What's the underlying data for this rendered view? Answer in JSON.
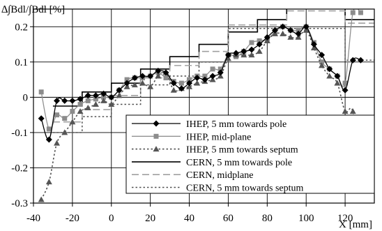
{
  "chart_data": {
    "type": "line",
    "title": "",
    "ylabel": "∆∫Bdl/∫Bdl [%]",
    "xlabel": "X [mm]",
    "xlim": [
      -40,
      135
    ],
    "ylim": [
      -0.3,
      0.25
    ],
    "x_ticks": [
      -40,
      -20,
      0,
      20,
      40,
      60,
      80,
      100,
      120
    ],
    "x_tick_labels": [
      "-40",
      "-20",
      "0",
      "20",
      "40",
      "60",
      "80",
      "100",
      "120"
    ],
    "y_ticks": [
      0.2,
      0.1,
      0,
      -0.1,
      -0.2,
      -0.3
    ],
    "y_tick_labels": [
      "0.2",
      "0.1",
      "0",
      "-0.1",
      "-0.2",
      "-0.3"
    ],
    "grid": true,
    "legend_position": "bottom-right",
    "series": [
      {
        "name": "IHEP, 5 mm towards pole",
        "color": "#000000",
        "line_style": "solid",
        "line_width": 1.3,
        "marker": "diamond",
        "smooth": true,
        "x": [
          -36,
          -32,
          -28,
          -24,
          -20,
          -16,
          -12,
          -8,
          -4,
          0,
          4,
          8,
          12,
          16,
          20,
          24,
          28,
          32,
          36,
          40,
          44,
          48,
          52,
          56,
          60,
          64,
          68,
          72,
          76,
          80,
          84,
          88,
          92,
          96,
          100,
          104,
          108,
          112,
          116,
          120,
          124,
          128
        ],
        "y": [
          -0.06,
          -0.12,
          -0.01,
          -0.01,
          -0.01,
          -0.005,
          0.005,
          0.005,
          0.01,
          0.0,
          0.02,
          0.04,
          0.055,
          0.06,
          0.06,
          0.075,
          0.07,
          0.04,
          0.025,
          0.04,
          0.055,
          0.05,
          0.06,
          0.07,
          0.12,
          0.125,
          0.13,
          0.135,
          0.15,
          0.17,
          0.19,
          0.2,
          0.19,
          0.18,
          0.2,
          0.15,
          0.12,
          0.08,
          0.06,
          0.02,
          0.105,
          0.105
        ]
      },
      {
        "name": "IHEP, mid-plane",
        "color": "#909090",
        "line_style": "solid",
        "line_width": 1.3,
        "marker": "square",
        "smooth": true,
        "x": [
          -36,
          -32,
          -28,
          -24,
          -20,
          -16,
          -12,
          -8,
          -4,
          0,
          4,
          8,
          12,
          16,
          20,
          24,
          28,
          32,
          36,
          40,
          44,
          48,
          52,
          56,
          60,
          64,
          68,
          72,
          76,
          80,
          84,
          88,
          92,
          96,
          100,
          104,
          108,
          112,
          116,
          120,
          124,
          128
        ],
        "y": [
          0.015,
          -0.09,
          -0.05,
          -0.06,
          -0.04,
          -0.02,
          -0.01,
          -0.005,
          0.0,
          0.0,
          0.02,
          0.05,
          0.055,
          0.055,
          0.06,
          0.07,
          0.055,
          0.045,
          0.04,
          0.05,
          0.06,
          0.06,
          0.08,
          0.08,
          0.12,
          0.115,
          0.13,
          0.155,
          0.16,
          0.165,
          0.185,
          0.2,
          0.19,
          0.19,
          0.2,
          0.155,
          0.1,
          0.08,
          0.06,
          0.04,
          0.24,
          0.24
        ]
      },
      {
        "name": "IHEP, 5 mm towards septum",
        "color": "#505050",
        "line_style": "dotted",
        "line_width": 1.6,
        "marker": "triangle",
        "smooth": true,
        "x": [
          -36,
          -32,
          -28,
          -24,
          -20,
          -16,
          -12,
          -8,
          -4,
          0,
          4,
          8,
          12,
          16,
          20,
          24,
          28,
          32,
          36,
          40,
          44,
          48,
          52,
          56,
          60,
          64,
          68,
          72,
          76,
          80,
          84,
          88,
          92,
          96,
          100,
          104,
          108,
          112,
          116,
          120,
          124,
          128
        ],
        "y": [
          -0.29,
          -0.24,
          -0.13,
          -0.1,
          -0.07,
          -0.04,
          -0.03,
          -0.02,
          -0.01,
          -0.02,
          0.005,
          0.03,
          0.035,
          0.04,
          0.03,
          0.06,
          0.07,
          0.02,
          0.025,
          0.03,
          0.04,
          0.045,
          0.05,
          0.06,
          0.11,
          0.12,
          0.12,
          0.12,
          0.13,
          0.16,
          0.18,
          0.18,
          0.17,
          0.17,
          0.19,
          0.14,
          0.09,
          0.06,
          0.04,
          -0.04,
          -0.04,
          -0.2
        ]
      },
      {
        "name": "CERN, 5 mm towards pole",
        "color": "#000000",
        "line_style": "solid",
        "line_width": 1.6,
        "marker": "none",
        "step": true,
        "x": [
          -30,
          -15,
          -15,
          0,
          0,
          15,
          15,
          30,
          30,
          45,
          45,
          60,
          60,
          75,
          75,
          90,
          90,
          120,
          120,
          135
        ],
        "y": [
          -0.025,
          -0.025,
          0.015,
          0.015,
          0.04,
          0.04,
          0.08,
          0.08,
          0.115,
          0.115,
          0.15,
          0.15,
          0.185,
          0.185,
          0.22,
          0.22,
          0.255,
          0.255,
          0.22,
          0.22
        ]
      },
      {
        "name": "CERN, midplane",
        "color": "#a0a0a0",
        "line_style": "dashed",
        "line_width": 1.6,
        "marker": "none",
        "step": true,
        "x": [
          -30,
          -15,
          -15,
          0,
          0,
          15,
          15,
          30,
          30,
          45,
          45,
          60,
          60,
          90,
          90,
          120,
          120,
          135
        ],
        "y": [
          -0.07,
          -0.07,
          -0.035,
          -0.035,
          0.005,
          0.005,
          0.055,
          0.055,
          0.09,
          0.09,
          0.13,
          0.13,
          0.205,
          0.205,
          0.245,
          0.245,
          0.21,
          0.21
        ]
      },
      {
        "name": "CERN, 5 mm towards septum",
        "color": "#505050",
        "line_style": "dotted",
        "line_width": 1.5,
        "marker": "none",
        "step": true,
        "x": [
          -30,
          -15,
          -15,
          0,
          0,
          15,
          15,
          30,
          30,
          45,
          45,
          60,
          60,
          90,
          90,
          120,
          120,
          135
        ],
        "y": [
          -0.1,
          -0.1,
          -0.055,
          -0.055,
          -0.02,
          -0.02,
          0.035,
          0.035,
          0.06,
          0.06,
          0.1,
          0.1,
          0.195,
          0.195,
          0.195,
          0.195,
          0.105,
          0.105
        ]
      }
    ]
  }
}
